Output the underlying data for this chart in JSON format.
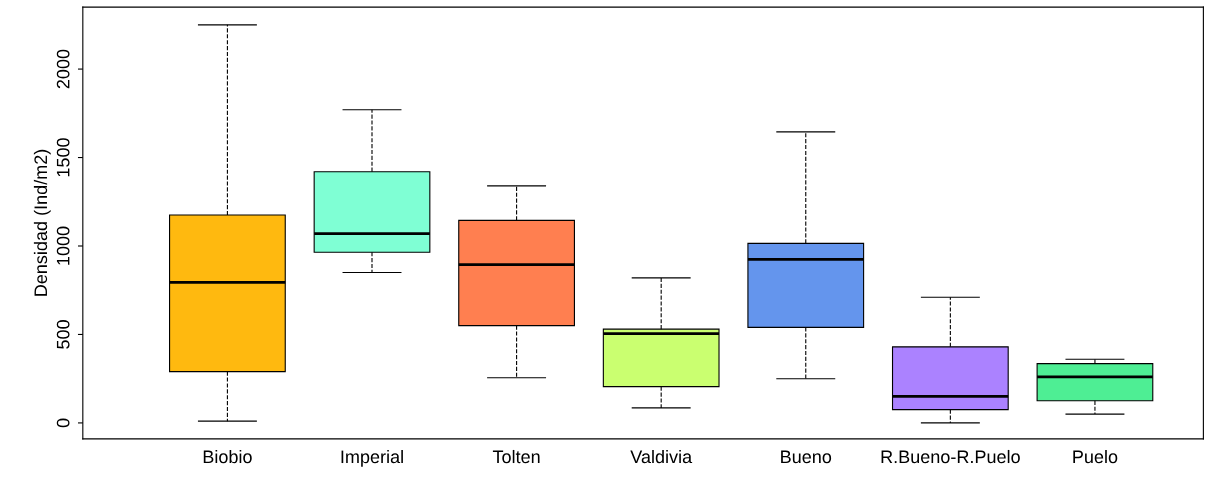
{
  "chart_data": {
    "type": "box",
    "ylabel": "Densidad (Ind/m2)",
    "categories": [
      "Biobio",
      "Imperial",
      "Tolten",
      "Valdivia",
      "Bueno",
      "R.Bueno-R.Puelo",
      "Puelo"
    ],
    "colors": [
      "#ffb90f",
      "#7fffd4",
      "#ff7f50",
      "#caff70",
      "#6495ed",
      "#ab82ff",
      "#4eee94"
    ],
    "boxes": [
      {
        "low": 10,
        "q1": 290,
        "median": 795,
        "q3": 1175,
        "high": 2250
      },
      {
        "low": 850,
        "q1": 965,
        "median": 1070,
        "q3": 1420,
        "high": 1770
      },
      {
        "low": 255,
        "q1": 550,
        "median": 895,
        "q3": 1145,
        "high": 1340
      },
      {
        "low": 85,
        "q1": 205,
        "median": 505,
        "q3": 530,
        "high": 820
      },
      {
        "low": 250,
        "q1": 540,
        "median": 925,
        "q3": 1015,
        "high": 1645
      },
      {
        "low": 0,
        "q1": 75,
        "median": 150,
        "q3": 430,
        "high": 710
      },
      {
        "low": 50,
        "q1": 125,
        "median": 260,
        "q3": 335,
        "high": 360
      }
    ],
    "ylim": [
      -90,
      2350
    ],
    "yticks": [
      0,
      500,
      1000,
      1500,
      2000
    ],
    "grid": false,
    "line_style": "dashed"
  }
}
